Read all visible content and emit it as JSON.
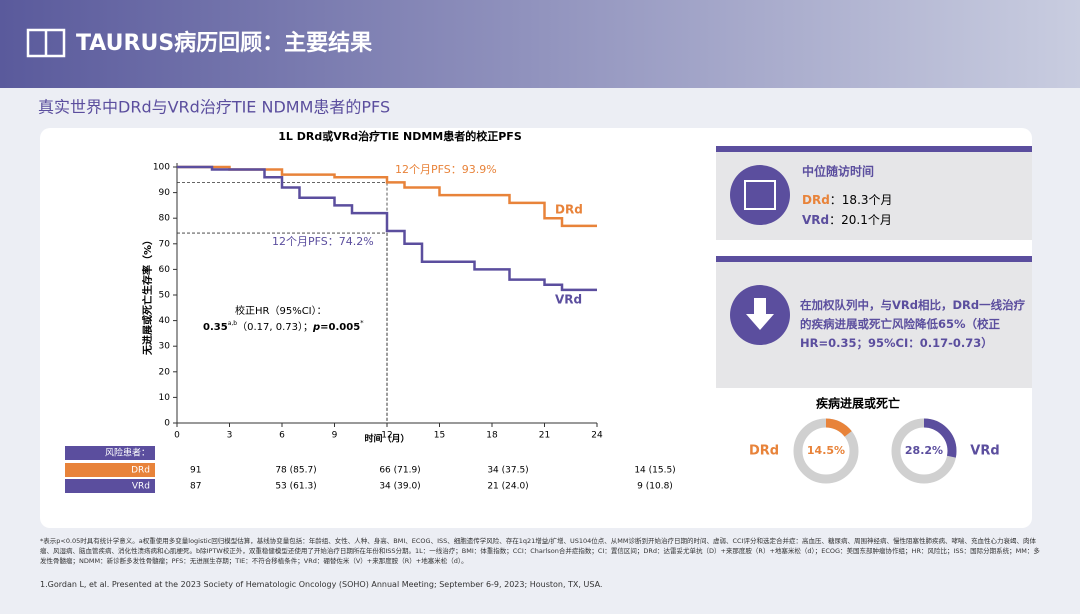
{
  "header": {
    "title": "TAURUS病历回顾：主要结果",
    "subtitle": "真实世界中DRd与VRd治疗TIE NDMM患者的PFS"
  },
  "chart_data": [
    {
      "type": "line",
      "title": "1L DRd或VRd治疗TIE NDMM患者的校正PFS",
      "ylabel": "无进展或死亡生存率（%）",
      "xlabel": "时间（月）",
      "xlim": [
        0,
        24
      ],
      "xticks": [
        0,
        3,
        6,
        9,
        12,
        15,
        18,
        21,
        24
      ],
      "ylim": [
        0,
        100
      ],
      "yticks": [
        0,
        10,
        20,
        30,
        40,
        50,
        60,
        70,
        80,
        90,
        100
      ],
      "series": [
        {
          "name": "DRd",
          "color": "#e8833a",
          "x": [
            0,
            3,
            3,
            6,
            6,
            9,
            9,
            12,
            12,
            13,
            13,
            15,
            15,
            19,
            19,
            21,
            21,
            22,
            22,
            24
          ],
          "values": [
            100,
            100,
            99,
            99,
            97,
            97,
            96,
            96,
            94,
            94,
            92,
            92,
            89,
            89,
            86,
            86,
            80,
            80,
            77,
            77
          ]
        },
        {
          "name": "VRd",
          "color": "#5b4e9e",
          "x": [
            0,
            2,
            2,
            5,
            5,
            6,
            6,
            7,
            7,
            9,
            9,
            10,
            10,
            12,
            12,
            13,
            13,
            14,
            14,
            17,
            17,
            19,
            19,
            21,
            21,
            22,
            22,
            24
          ],
          "values": [
            100,
            100,
            99,
            99,
            96,
            96,
            92,
            92,
            88,
            88,
            85,
            85,
            82,
            82,
            75,
            75,
            70,
            70,
            63,
            63,
            60,
            60,
            56,
            56,
            54,
            54,
            52,
            52
          ]
        }
      ],
      "markers": [
        {
          "x": 12,
          "y": 93.9,
          "label": "12个月PFS：93.9%"
        },
        {
          "x": 12,
          "y": 74.2,
          "label": "12个月PFS：74.2%"
        }
      ],
      "hr": {
        "label": "校正HR（95%CI）：",
        "value": "0.35",
        "sup": "a,b",
        "ci": "（0.17, 0.73）；",
        "p": "p",
        "p_value": "=0.005",
        "p_sup": "*"
      },
      "risk_table": {
        "title": "风险患者：",
        "rows": [
          {
            "name": "DRd",
            "cells": [
              "91",
              "78 (85.7)",
              "66 (71.9)",
              "34 (37.5)",
              "14 (15.5)"
            ]
          },
          {
            "name": "VRd",
            "cells": [
              "87",
              "53 (61.3)",
              "34 (39.0)",
              "21 (24.0)",
              "9 (10.8)"
            ]
          }
        ]
      }
    },
    {
      "type": "donut",
      "title": "疾病进展或死亡",
      "categories": [
        "DRd",
        "VRd"
      ],
      "values": [
        14.5,
        28.2
      ],
      "value_labels": [
        "14.5%",
        "28.2%"
      ],
      "colors": [
        "#e8833a",
        "#5b4e9e"
      ],
      "ylim": [
        0,
        100
      ]
    }
  ],
  "panels": {
    "followup": {
      "title": "中位随访时间",
      "rows": [
        {
          "name": "DRd",
          "text": "：18.3个月"
        },
        {
          "name": "VRd",
          "text": "：20.1个月"
        }
      ]
    },
    "conclusion": "在加权队列中，与VRd相比，DRd一线治疗的疾病进展或死亡风险降低65%（校正HR=0.35；95%CI：0.17-0.73）"
  },
  "footnotes": [
    "*表示p<0.05时具有统计学意义。a权重使用多变量logistic回归模型估算，基线协变量包括：年龄组、女性、人种、身高、BMI、ECOG、ISS、细胞遗传学风险、存在1q21增益/扩增、US104位点、从MM诊断到开始治疗日期的时间、虚弱、CCI评分和选定合并症：高血压、糖尿病、周围神经病、慢性阻塞性肺疾病、哮喘、充血性心力衰竭、肉体瘤、风湿病、脑血管疾病、消化性溃疡病和心肌梗死。b除IPTW校正外，双重稳健模型还使用了开始治疗日期所在年份和ISS分期。1L：一线治疗；BMI：体重指数；CCI：Charlson合并症指数；CI：置信区间；DRd：达雷妥尤单抗（D）+来那度胺（R）+地塞米松（d）；ECOG：美国东部肿瘤协作组；HR：风险比；ISS：国际分期系统；MM：多发性骨髓瘤；NDMM：新诊断多发性骨髓瘤；PFS：无进展生存期；TIE：不符合移植条件；VRd：硼替佐米（V）+来那度胺（R）+地塞米松（d）。",
    "1.Gordan L, et al. Presented at the 2023 Society of Hematologic Oncology (SOHO) Annual Meeting; September 6-9, 2023; Houston, TX, USA."
  ]
}
